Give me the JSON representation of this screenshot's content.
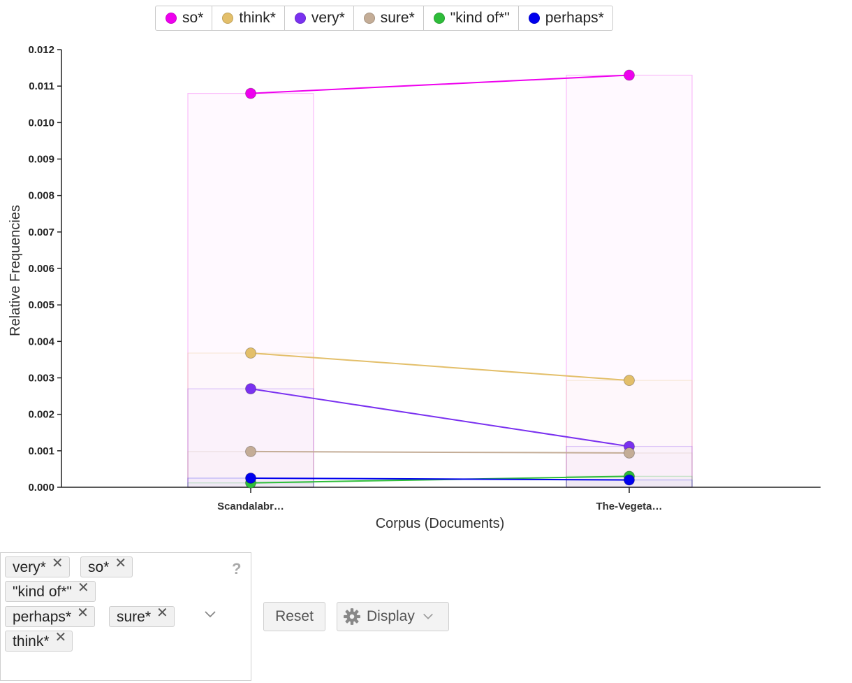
{
  "chart_data": {
    "type": "line",
    "categories": [
      "Scandalabr…",
      "The-Vegeta…"
    ],
    "xlabel": "Corpus (Documents)",
    "ylabel": "Relative Frequencies",
    "ylim": [
      0,
      0.012
    ],
    "yticks": [
      "0.000",
      "0.001",
      "0.002",
      "0.003",
      "0.004",
      "0.005",
      "0.006",
      "0.007",
      "0.008",
      "0.009",
      "0.010",
      "0.011",
      "0.012"
    ],
    "legend_position": "top",
    "series": [
      {
        "name": "so*",
        "color": "#ee00ee",
        "values": [
          0.0108,
          0.0113
        ]
      },
      {
        "name": "think*",
        "color": "#e3bf6a",
        "values": [
          0.00368,
          0.00293
        ]
      },
      {
        "name": "very*",
        "color": "#7a31f0",
        "values": [
          0.0027,
          0.00112
        ]
      },
      {
        "name": "sure*",
        "color": "#c4ad97",
        "values": [
          0.00098,
          0.00094
        ]
      },
      {
        "name": "\"kind of*\"",
        "color": "#2ebd3a",
        "values": [
          0.00012,
          0.0003
        ]
      },
      {
        "name": "perhaps*",
        "color": "#0000ee",
        "values": [
          0.00025,
          0.0002
        ]
      }
    ]
  },
  "legend": {
    "items": [
      {
        "label": "so*",
        "color": "#ee00ee"
      },
      {
        "label": "think*",
        "color": "#e3bf6a"
      },
      {
        "label": "very*",
        "color": "#7a31f0"
      },
      {
        "label": "sure*",
        "color": "#c4ad97"
      },
      {
        "label": "\"kind of*\"",
        "color": "#2ebd3a"
      },
      {
        "label": "perhaps*",
        "color": "#0000ee"
      }
    ]
  },
  "terms": {
    "chips": [
      "very*",
      "so*",
      "\"kind of*\"",
      "perhaps*",
      "sure*",
      "think*"
    ],
    "help_label": "?",
    "remove_glyph": "✕"
  },
  "buttons": {
    "reset_label": "Reset",
    "display_label": "Display"
  },
  "icons": {
    "help": "help-icon",
    "gear": "gear-icon",
    "dropdown": "chevron-down-icon",
    "remove": "close-icon"
  }
}
